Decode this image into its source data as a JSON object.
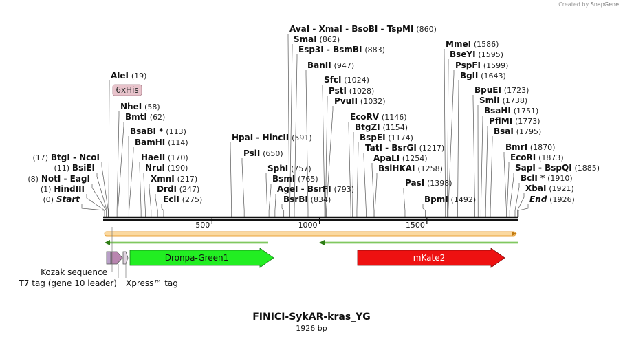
{
  "credit": {
    "prefix": "Created by",
    "brand": "SnapGene"
  },
  "plasmid": {
    "name": "FINICI-SykAR-kras_YG",
    "length": "1926 bp"
  },
  "axis": {
    "ticks": [
      "500",
      "1000",
      "1500"
    ]
  },
  "enzymes": [
    {
      "name": "AvaI  -  XmaI  -  BsoBI  -  TspMI",
      "pos": "(860)"
    },
    {
      "name": "SmaI",
      "pos": "(862)"
    },
    {
      "name": "Esp3I  -  BsmBI",
      "pos": "(883)"
    },
    {
      "name": "BanII",
      "pos": "(947)"
    },
    {
      "name": "SfcI",
      "pos": "(1024)"
    },
    {
      "name": "PstI",
      "pos": "(1028)"
    },
    {
      "name": "PvuII",
      "pos": "(1032)"
    },
    {
      "name": "EcoRV",
      "pos": "(1146)"
    },
    {
      "name": "BtgZI",
      "pos": "(1154)"
    },
    {
      "name": "BspEI",
      "pos": "(1174)"
    },
    {
      "name": "TatI  -  BsrGI",
      "pos": "(1217)"
    },
    {
      "name": "ApaLI",
      "pos": "(1254)"
    },
    {
      "name": "BsiHKAI",
      "pos": "(1258)"
    },
    {
      "name": "PasI",
      "pos": "(1398)"
    },
    {
      "name": "BpmI",
      "pos": "(1492)"
    },
    {
      "name": "MmeI",
      "pos": "(1586)"
    },
    {
      "name": "BseYI",
      "pos": "(1595)"
    },
    {
      "name": "PspFI",
      "pos": "(1599)"
    },
    {
      "name": "BglI",
      "pos": "(1643)"
    },
    {
      "name": "BpuEI",
      "pos": "(1723)"
    },
    {
      "name": "SmlI",
      "pos": "(1738)"
    },
    {
      "name": "BsaHI",
      "pos": "(1751)"
    },
    {
      "name": "PflMI",
      "pos": "(1773)"
    },
    {
      "name": "BsaI",
      "pos": "(1795)"
    },
    {
      "name": "BmrI",
      "pos": "(1870)"
    },
    {
      "name": "EcoRI",
      "pos": "(1873)"
    },
    {
      "name": "SapI  -  BspQI",
      "pos": "(1885)"
    },
    {
      "name": "BclI *",
      "pos": "(1910)"
    },
    {
      "name": "XbaI",
      "pos": "(1921)"
    },
    {
      "name": "End",
      "pos": "(1926)"
    },
    {
      "name": "AleI",
      "pos": "(19)"
    },
    {
      "name": "NheI",
      "pos": "(58)"
    },
    {
      "name": "BmtI",
      "pos": "(62)"
    },
    {
      "name": "BsaBI *",
      "pos": "(113)"
    },
    {
      "name": "BamHI",
      "pos": "(114)"
    },
    {
      "name": "HaeII",
      "pos": "(170)"
    },
    {
      "name": "NruI",
      "pos": "(190)"
    },
    {
      "name": "XmnI",
      "pos": "(217)"
    },
    {
      "name": "DrdI",
      "pos": "(247)"
    },
    {
      "name": "EciI",
      "pos": "(275)"
    },
    {
      "name": "HpaI  -  HincII",
      "pos": "(591)"
    },
    {
      "name": "PsiI",
      "pos": "(650)"
    },
    {
      "name": "SphI",
      "pos": "(757)"
    },
    {
      "name": "BsmI",
      "pos": "(765)"
    },
    {
      "name": "AgeI  -  BsrFI",
      "pos": "(793)"
    },
    {
      "name": "BsrBI",
      "pos": "(834)"
    },
    {
      "name": "BtgI  -  NcoI",
      "pos": "(17)"
    },
    {
      "name": "BsiEI",
      "pos": "(11)"
    },
    {
      "name": "NotI  -  EagI",
      "pos": "(8)"
    },
    {
      "name": "HindIII",
      "pos": "(1)"
    },
    {
      "name": "Start",
      "pos": "(0)"
    }
  ],
  "features": {
    "tag6xhis": "6xHis",
    "dronpa": "Dronpa-Green1",
    "mkate": "mKate2",
    "kozak": "Kozak sequence",
    "t7tag": "T7 tag (gene 10 leader)",
    "xpress": "Xpress™ tag"
  },
  "colors": {
    "dronpa": "#22ee22",
    "mkate": "#ee1111",
    "orange_bar": "#f5a623",
    "green_line": "#4caf20",
    "his_box": "#e8c3cb"
  }
}
